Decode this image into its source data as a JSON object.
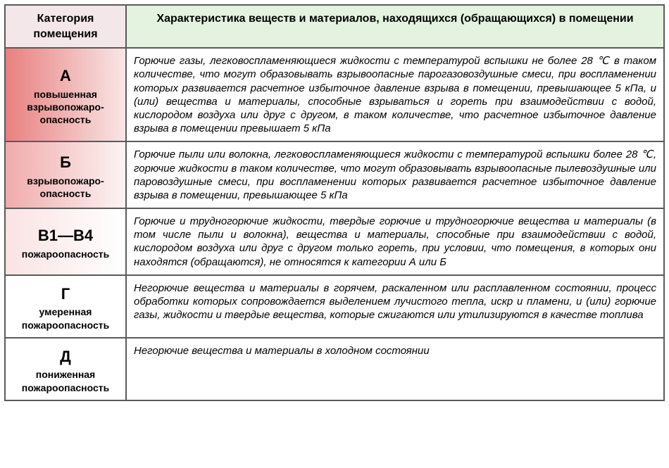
{
  "header": {
    "col_category": "Категория помещения",
    "col_description": "Характеристика веществ и материалов, находящихся (обращающихся) в помещении",
    "cat_header_bg": "#f3e7ea",
    "desc_header_bg": "#e4f2e0"
  },
  "rows": [
    {
      "letter": "А",
      "subtitle": "повышенная взрывопожаро-опасность",
      "description": "Горючие газы, легковоспламеняющиеся жидкости с температурой вспышки не более 28 ℃ в таком количестве, что могут образовывать взрывоопасные парогазовоздушные смеси, при воспламенении которых развивается расчетное избыточное давление взрыва в помещении, превышающее 5 кПа, и (или) вещества и материалы, способные взрываться и гореть при взаимодействии с водой, кислородом воздуха или друг с другом, в таком количестве, что расчетное избыточное давление взрыва в помещении превышает 5 кПа",
      "bg_gradient_from": "#e98080",
      "bg_gradient_to": "#f9e6e6"
    },
    {
      "letter": "Б",
      "subtitle": "взрывопожаро-опасность",
      "description": "Горючие пыли или волокна, легковоспламеняющиеся жидкости с температурой вспышки более 28 ℃, горючие жидкости в таком количестве, что могут образовывать взрывоопасные пылевоздушные или паровоздушные смеси, при воспламенении которых развивается расчетное избыточное давление взрыва в помещении, превышающее 5 кПа",
      "bg_gradient_from": "#f0abab",
      "bg_gradient_to": "#fdf3f3"
    },
    {
      "letter": "В1—В4",
      "subtitle": "пожароопасность",
      "description": "Горючие и трудногорючие жидкости, твердые горючие и трудногорючие вещества и материалы (в том числе пыли и волокна), вещества и материалы, способные при взаимодействии с водой, кислородом воздуха или друг с другом только гореть, при условии, что помещения, в которых они находятся (обращаются), не относятся к категории А или Б",
      "bg_gradient_from": "#fae3e3",
      "bg_gradient_to": "#ffffff"
    },
    {
      "letter": "Г",
      "subtitle": "умеренная пожароопасность",
      "description": "Негорючие вещества и материалы в горячем, раскаленном или расплавленном состоянии, процесс обработки которых сопровождается выделением лучистого тепла, искр и пламени, и (или) горючие газы, жидкости и твердые вещества, которые сжигаются или утилизируются в качестве топлива",
      "bg_gradient_from": "#ffffff",
      "bg_gradient_to": "#ffffff"
    },
    {
      "letter": "Д",
      "subtitle": "пониженная пожароопасность",
      "description": "Негорючие вещества и материалы в холодном состоянии",
      "bg_gradient_from": "#ffffff",
      "bg_gradient_to": "#ffffff"
    }
  ]
}
